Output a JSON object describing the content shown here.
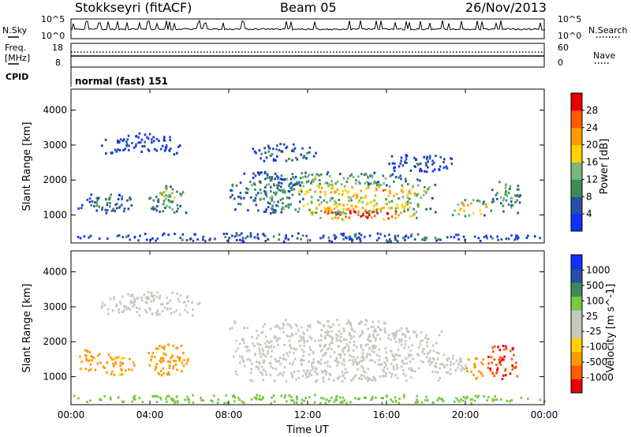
{
  "header": {
    "station": "Stokkseyri (fitACF)",
    "beam": "Beam 05",
    "date": "26/Nov/2013"
  },
  "strip_labels": {
    "nsky": "N.Sky",
    "nsearch": "N.Search",
    "freq_line1": "Freq.",
    "freq_line2": "[MHz]",
    "nave": "Nave",
    "cpid": "CPID",
    "cpid_value": "normal (fast) 151"
  },
  "strip_ticks": {
    "nsky_left": [
      "10^5",
      "10^0"
    ],
    "nsky_right": [
      "10^5",
      "10^0"
    ],
    "freq_left": [
      "18",
      "8"
    ],
    "nave_right": [
      "60",
      "0"
    ]
  },
  "colors": {
    "power_scale": [
      "#1030ff",
      "#284fa8",
      "#3c8c58",
      "#78b878",
      "#ffd200",
      "#ff9a00",
      "#ff5a00",
      "#e80000"
    ],
    "velocity_scale": [
      "#e80000",
      "#ff5a00",
      "#ff9a00",
      "#ffd200",
      "#c8c8c0",
      "#c8c8c0",
      "#78c840",
      "#3c8c58",
      "#284fa8",
      "#1030ff"
    ]
  },
  "chart_data": [
    {
      "type": "heatmap",
      "name": "power",
      "ylabel": "Slant Range [km]",
      "x_ticks": [
        "00:00",
        "04:00",
        "08:00",
        "12:00",
        "16:00",
        "20:00",
        "00:00"
      ],
      "y_ticks": [
        "1000",
        "2000",
        "3000",
        "4000"
      ],
      "ylim": [
        200,
        4600
      ],
      "colorbar_label": "Power [dB]",
      "colorbar_ticks": [
        "4",
        "8",
        "12",
        "16",
        "20",
        "24",
        "28"
      ],
      "colorbar_range": [
        0,
        32
      ],
      "blobs": [
        {
          "t0": 0.3,
          "t1": 3.2,
          "r0": 1000,
          "r1": 1600,
          "p": 7
        },
        {
          "t0": 1.5,
          "t1": 5.5,
          "r0": 2700,
          "r1": 3300,
          "p": 4
        },
        {
          "t0": 3.9,
          "t1": 5.8,
          "r0": 1000,
          "r1": 1800,
          "p": 12
        },
        {
          "t0": 4.3,
          "t1": 5.0,
          "r0": 1300,
          "r1": 1800,
          "p": 17
        },
        {
          "t0": 8.0,
          "t1": 11.5,
          "r0": 1000,
          "r1": 2200,
          "p": 9
        },
        {
          "t0": 9.8,
          "t1": 17.8,
          "r0": 1800,
          "r1": 2200,
          "p": 12
        },
        {
          "t0": 11.0,
          "t1": 18.5,
          "r0": 1400,
          "r1": 1900,
          "p": 20
        },
        {
          "t0": 12.0,
          "t1": 17.5,
          "r0": 800,
          "r1": 1200,
          "p": 27
        },
        {
          "t0": 10.0,
          "t1": 18.5,
          "r0": 1000,
          "r1": 1400,
          "p": 18
        },
        {
          "t0": 9.0,
          "t1": 12.5,
          "r0": 2500,
          "r1": 3000,
          "p": 7
        },
        {
          "t0": 16.0,
          "t1": 19.5,
          "r0": 2200,
          "r1": 2700,
          "p": 5
        },
        {
          "t0": 19.3,
          "t1": 21.3,
          "r0": 900,
          "r1": 1400,
          "p": 20
        },
        {
          "t0": 21.3,
          "t1": 22.8,
          "r0": 1000,
          "r1": 2000,
          "p": 11
        },
        {
          "t0": 0.0,
          "t1": 24.0,
          "r0": 200,
          "r1": 450,
          "p": 6
        }
      ]
    },
    {
      "type": "heatmap",
      "name": "velocity",
      "ylabel": "Slant Range [km]",
      "xlabel": "Time UT",
      "x_ticks": [
        "00:00",
        "04:00",
        "08:00",
        "12:00",
        "16:00",
        "20:00",
        "00:00"
      ],
      "y_ticks": [
        "1000",
        "2000",
        "3000",
        "4000"
      ],
      "ylim": [
        200,
        4600
      ],
      "colorbar_label": "Velocity [m s^-1]",
      "colorbar_ticks": [
        "-1000",
        "-500",
        "-100",
        "-25",
        "25",
        "100",
        "500",
        "1000"
      ],
      "blobs": [
        {
          "t0": 0.3,
          "t1": 1.5,
          "r0": 1100,
          "r1": 1800,
          "v": -300
        },
        {
          "t0": 1.5,
          "t1": 3.2,
          "r0": 1000,
          "r1": 1600,
          "v": -150
        },
        {
          "t0": 1.5,
          "t1": 6.5,
          "r0": 2700,
          "r1": 3400,
          "v": 0
        },
        {
          "t0": 3.8,
          "t1": 5.9,
          "r0": 1000,
          "r1": 1900,
          "v": -250
        },
        {
          "t0": 8.0,
          "t1": 18.8,
          "r0": 800,
          "r1": 2600,
          "v": 0
        },
        {
          "t0": 18.0,
          "t1": 20.0,
          "r0": 1000,
          "r1": 1600,
          "v": 10
        },
        {
          "t0": 19.8,
          "t1": 21.0,
          "r0": 900,
          "r1": 1500,
          "v": -300
        },
        {
          "t0": 21.0,
          "t1": 22.7,
          "r0": 900,
          "r1": 1900,
          "v": -1000
        },
        {
          "t0": 0.0,
          "t1": 24.0,
          "r0": 200,
          "r1": 450,
          "v": 60
        }
      ]
    }
  ]
}
